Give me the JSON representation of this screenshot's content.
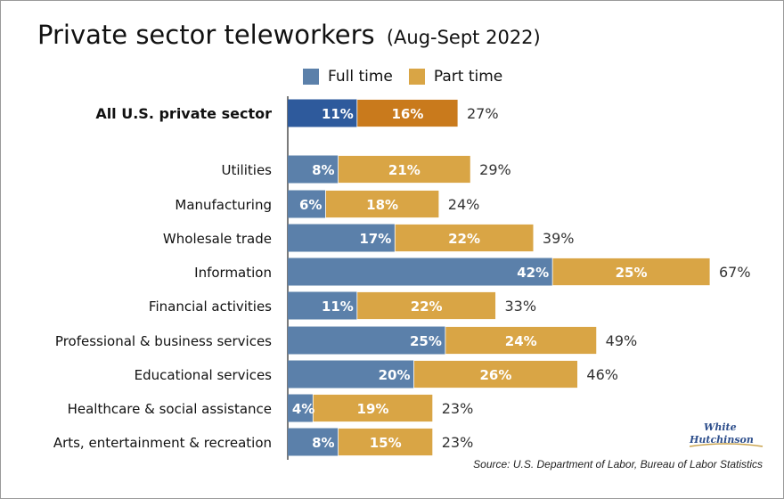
{
  "title": "Private sector teleworkers",
  "subtitle": "(Aug-Sept 2022)",
  "source": "Source: U.S. Department of Labor, Bureau of Labor Statistics",
  "logo": {
    "text1": "White",
    "text2": "Hutchinson"
  },
  "colors": {
    "full_time": "#5b80aa",
    "part_time": "#d9a545",
    "full_time_highlight": "#2e5a9c",
    "part_time_highlight": "#c97a1c"
  },
  "chart_data": {
    "type": "bar",
    "orientation": "horizontal",
    "stacked": true,
    "title": "Private sector teleworkers",
    "subtitle": "(Aug-Sept 2022)",
    "xlim": [
      0,
      67
    ],
    "grid": false,
    "legend_position": "top",
    "series": [
      {
        "name": "Full time",
        "values": [
          11,
          8,
          6,
          17,
          42,
          11,
          25,
          20,
          4,
          8
        ]
      },
      {
        "name": "Part time",
        "values": [
          16,
          21,
          18,
          22,
          25,
          22,
          24,
          26,
          19,
          15
        ]
      }
    ],
    "categories": [
      "All U.S. private sector",
      "Utilities",
      "Manufacturing",
      "Wholesale trade",
      "Information",
      "Financial activities",
      "Professional & business services",
      "Educational services",
      "Healthcare & social assistance",
      "Arts, entertainment & recreation"
    ],
    "totals": [
      27,
      29,
      24,
      39,
      67,
      33,
      49,
      46,
      23,
      23
    ],
    "highlight_category": "All U.S. private sector"
  }
}
